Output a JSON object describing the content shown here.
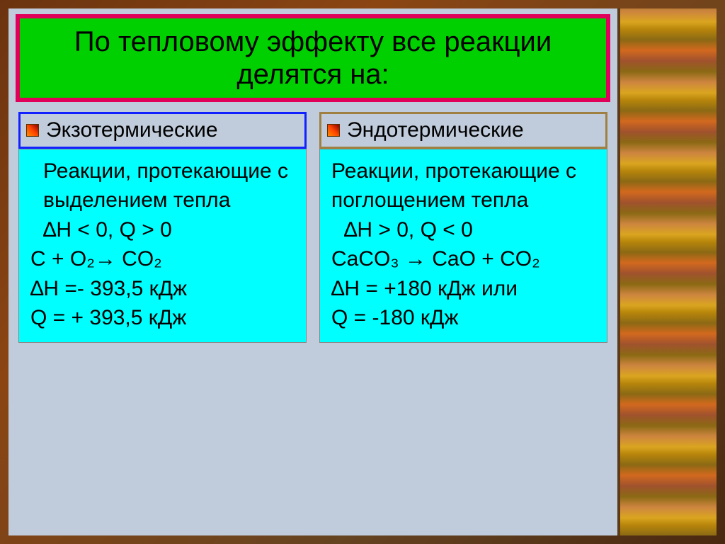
{
  "title": "По тепловому эффекту все реакции делятся на:",
  "left": {
    "header": "Экзотермические",
    "body_lines": [
      "Реакции, протекающие с выделением тепла",
      "∆H < 0,  Q > 0",
      "C + O₂→ CO₂",
      "∆H =- 393,5 кДж",
      "Q = + 393,5 кДж"
    ]
  },
  "right": {
    "header": "Эндотермические",
    "body_lines": [
      "Реакции, протекающие с поглощением тепла",
      "∆H > 0,  Q < 0",
      "CaCO₃ → CaO + CO₂",
      "∆H = +180 кДж  или",
      "Q = -180 кДж"
    ]
  },
  "colors": {
    "title_bg": "#00d000",
    "title_border": "#e0005a",
    "left_border": "#1020ff",
    "right_border": "#a08040",
    "body_bg": "#00ffff",
    "slide_bg": "#c0ccdc"
  }
}
